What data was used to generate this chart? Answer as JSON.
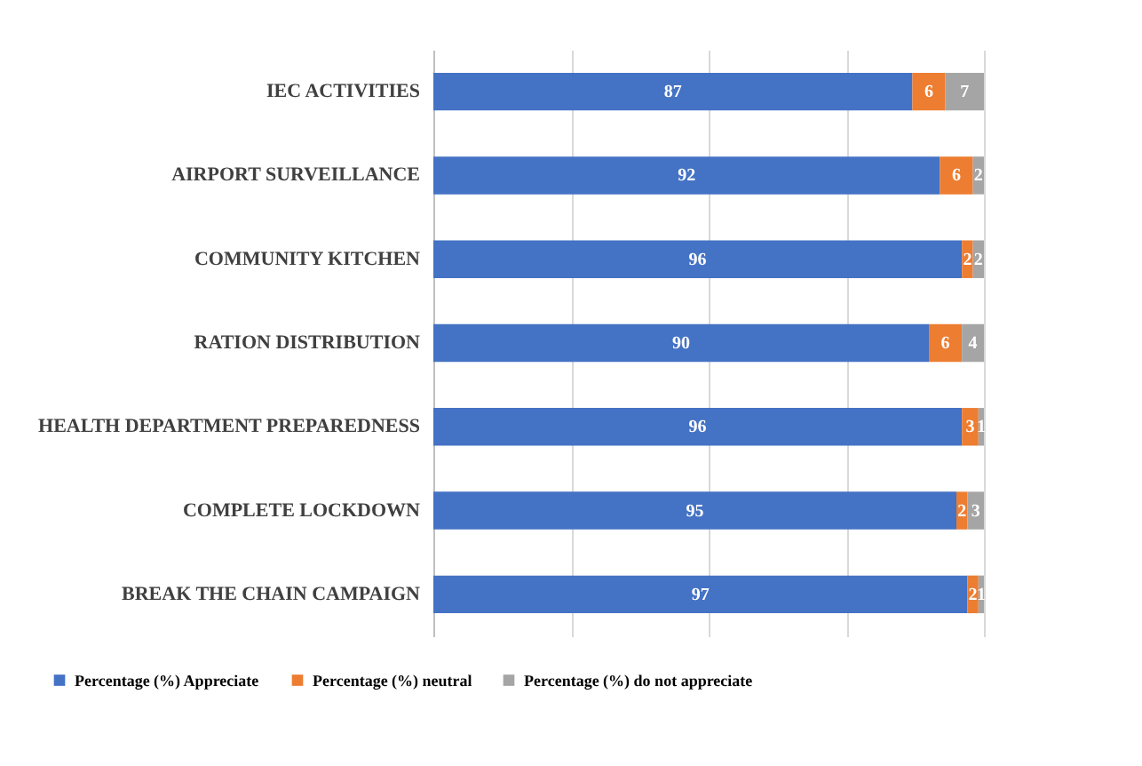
{
  "chart_data": {
    "type": "bar",
    "orientation": "horizontal",
    "stacked": true,
    "categories": [
      "IEC ACTIVITIES",
      "AIRPORT SURVEILLANCE",
      "COMMUNITY KITCHEN",
      "RATION DISTRIBUTION",
      "HEALTH DEPARTMENT PREPAREDNESS",
      "COMPLETE LOCKDOWN",
      "BREAK THE CHAIN CAMPAIGN"
    ],
    "series": [
      {
        "name": "Percentage (%) Appreciate",
        "color": "#4472c4",
        "values": [
          87,
          92,
          96,
          90,
          96,
          95,
          97
        ]
      },
      {
        "name": "Percentage (%) neutral",
        "color": "#ed7d31",
        "values": [
          6,
          6,
          2,
          6,
          3,
          2,
          2
        ]
      },
      {
        "name": "Percentage (%) do not appreciate",
        "color": "#a5a5a5",
        "values": [
          7,
          2,
          2,
          4,
          1,
          3,
          1
        ]
      }
    ],
    "xlim": [
      0,
      100
    ],
    "xticks": [
      {
        "value": 0,
        "label": null
      },
      {
        "value": 25,
        "label": null
      },
      {
        "value": 50,
        "label": null
      },
      {
        "value": 75,
        "label": null
      },
      {
        "value": 100,
        "label": null
      }
    ],
    "tick_labels": "y",
    "grid": "x",
    "legend": "bottom",
    "data_labels": true
  }
}
